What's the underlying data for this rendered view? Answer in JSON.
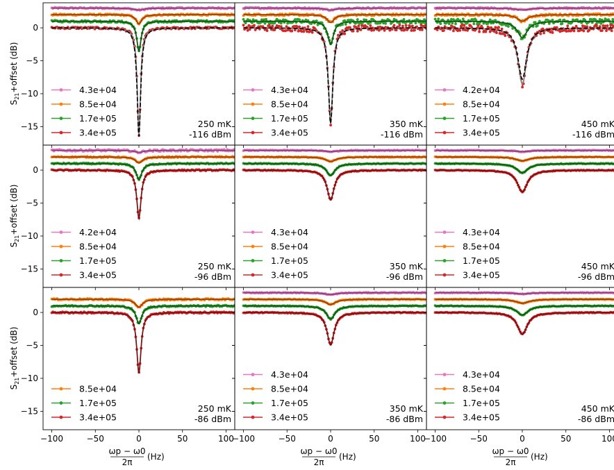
{
  "figure": {
    "ylabel_main": "S",
    "ylabel_sub": "21",
    "ylabel_rest": "+offset (dB)",
    "xlabel_num": "ωp − ω0",
    "xlabel_den": "2π",
    "xlabel_unit": "(Hz)"
  },
  "colors": {
    "pink": "#e377c2",
    "orange": "#ff7f0e",
    "green": "#2ca02c",
    "red": "#d62728",
    "fit": "#7f7f7f",
    "model": "#000000"
  },
  "chart_data": [
    {
      "type": "line",
      "row": 0,
      "col": 0,
      "temp_label": "250 mK",
      "power_label": "-116 dBm",
      "legend": [
        "4.3e+04",
        "8.5e+04",
        "1.7e+05",
        "3.4e+05"
      ],
      "series": [
        {
          "name": "4.3e+04",
          "color": "pink",
          "offset": 3,
          "depth": 0.3,
          "width": 8,
          "noise": 0.12
        },
        {
          "name": "8.5e+04",
          "color": "orange",
          "offset": 2,
          "depth": 1.4,
          "width": 4,
          "noise": 0.12
        },
        {
          "name": "1.7e+05",
          "color": "green",
          "offset": 1,
          "depth": 4.5,
          "width": 3,
          "noise": 0.15
        },
        {
          "name": "3.4e+05",
          "color": "red",
          "offset": 0,
          "depth": 16.5,
          "width": 2.2,
          "noise": 0.15
        }
      ],
      "dashed": {
        "depth": 16.5,
        "width": 2.5
      },
      "xlim": [
        -110,
        110
      ],
      "ylim": [
        -17.8,
        3.8
      ],
      "xticks": [
        -100,
        -50,
        0,
        50,
        100
      ],
      "yticks": [
        0,
        -5,
        -10,
        -15
      ]
    },
    {
      "type": "line",
      "row": 0,
      "col": 1,
      "temp_label": "350 mK",
      "power_label": "-116 dBm",
      "legend": [
        "4.3e+04",
        "8.5e+04",
        "1.7e+05",
        "3.4e+05"
      ],
      "series": [
        {
          "name": "4.3e+04",
          "color": "pink",
          "offset": 3,
          "depth": 0.3,
          "width": 8,
          "noise": 0.12
        },
        {
          "name": "8.5e+04",
          "color": "orange",
          "offset": 2,
          "depth": 1.2,
          "width": 5,
          "noise": 0.15
        },
        {
          "name": "1.7e+05",
          "color": "green",
          "offset": 1,
          "depth": 3.5,
          "width": 4,
          "noise": 0.35
        },
        {
          "name": "3.4e+05",
          "color": "red",
          "offset": 0,
          "depth": 14.5,
          "width": 3,
          "noise": 0.45
        }
      ],
      "dashed": {
        "depth": 14.5,
        "width": 3.2
      },
      "xlim": [
        -110,
        110
      ],
      "ylim": [
        -17.8,
        3.8
      ],
      "xticks": [
        -100,
        -50,
        0,
        50,
        100
      ],
      "yticks": [
        0,
        -5,
        -10,
        -15
      ]
    },
    {
      "type": "line",
      "row": 0,
      "col": 2,
      "temp_label": "450 mK",
      "power_label": "-116 dBm",
      "legend": [
        "4.2e+04",
        "8.5e+04",
        "1.7e+05",
        "3.4e+05"
      ],
      "series": [
        {
          "name": "4.2e+04",
          "color": "pink",
          "offset": 3,
          "depth": 0.3,
          "width": 10,
          "noise": 0.12
        },
        {
          "name": "8.5e+04",
          "color": "orange",
          "offset": 2,
          "depth": 1.0,
          "width": 7,
          "noise": 0.15
        },
        {
          "name": "1.7e+05",
          "color": "green",
          "offset": 1,
          "depth": 2.5,
          "width": 7,
          "noise": 0.4
        },
        {
          "name": "3.4e+05",
          "color": "red",
          "offset": 0,
          "depth": 8.5,
          "width": 6,
          "noise": 0.5
        }
      ],
      "dashed": {
        "depth": 7.8,
        "width": 6
      },
      "xlim": [
        -110,
        110
      ],
      "ylim": [
        -17.8,
        3.8
      ],
      "xticks": [
        -100,
        -50,
        0,
        50,
        100
      ],
      "yticks": [
        0,
        -5,
        -10,
        -15
      ]
    },
    {
      "type": "line",
      "row": 1,
      "col": 0,
      "temp_label": "250 mK",
      "power_label": "-96 dBm",
      "legend": [
        "4.2e+04",
        "8.5e+04",
        "1.7e+05",
        "3.4e+05"
      ],
      "series": [
        {
          "name": "4.2e+04",
          "color": "pink",
          "offset": 3,
          "depth": 0.3,
          "width": 6,
          "noise": 0.15
        },
        {
          "name": "8.5e+04",
          "color": "orange",
          "offset": 2,
          "depth": 0.9,
          "width": 5,
          "noise": 0.1
        },
        {
          "name": "1.7e+05",
          "color": "green",
          "offset": 1,
          "depth": 2.4,
          "width": 4,
          "noise": 0.1
        },
        {
          "name": "3.4e+05",
          "color": "red",
          "offset": 0,
          "depth": 7.3,
          "width": 3,
          "noise": 0.1
        }
      ],
      "dashed": null,
      "xlim": [
        -110,
        110
      ],
      "ylim": [
        -17.8,
        3.8
      ],
      "xticks": [
        -100,
        -50,
        0,
        50,
        100
      ],
      "yticks": [
        0,
        -5,
        -10,
        -15
      ]
    },
    {
      "type": "line",
      "row": 1,
      "col": 1,
      "temp_label": "350 mK",
      "power_label": "-96 dBm",
      "legend": [
        "4.3e+04",
        "8.5e+04",
        "1.7e+05",
        "3.4e+05"
      ],
      "series": [
        {
          "name": "4.3e+04",
          "color": "pink",
          "offset": 3,
          "depth": 0.2,
          "width": 8,
          "noise": 0.07
        },
        {
          "name": "8.5e+04",
          "color": "orange",
          "offset": 2,
          "depth": 0.7,
          "width": 7,
          "noise": 0.07
        },
        {
          "name": "1.7e+05",
          "color": "green",
          "offset": 1,
          "depth": 1.8,
          "width": 6,
          "noise": 0.07
        },
        {
          "name": "3.4e+05",
          "color": "red",
          "offset": 0,
          "depth": 4.5,
          "width": 5,
          "noise": 0.07
        }
      ],
      "dashed": null,
      "xlim": [
        -110,
        110
      ],
      "ylim": [
        -17.8,
        3.8
      ],
      "xticks": [
        -100,
        -50,
        0,
        50,
        100
      ],
      "yticks": [
        0,
        -5,
        -10,
        -15
      ]
    },
    {
      "type": "line",
      "row": 1,
      "col": 2,
      "temp_label": "450 mK",
      "power_label": "-96 dBm",
      "legend": [
        "4.3e+04",
        "8.5e+04",
        "1.7e+05",
        "3.4e+05"
      ],
      "series": [
        {
          "name": "4.3e+04",
          "color": "pink",
          "offset": 3,
          "depth": 0.2,
          "width": 10,
          "noise": 0.06
        },
        {
          "name": "8.5e+04",
          "color": "orange",
          "offset": 2,
          "depth": 0.6,
          "width": 9,
          "noise": 0.06
        },
        {
          "name": "1.7e+05",
          "color": "green",
          "offset": 1,
          "depth": 1.4,
          "width": 8,
          "noise": 0.06
        },
        {
          "name": "3.4e+05",
          "color": "red",
          "offset": 0,
          "depth": 3.3,
          "width": 7,
          "noise": 0.06
        }
      ],
      "dashed": null,
      "xlim": [
        -110,
        110
      ],
      "ylim": [
        -17.8,
        3.8
      ],
      "xticks": [
        -100,
        -50,
        0,
        50,
        100
      ],
      "yticks": [
        0,
        -5,
        -10,
        -15
      ]
    },
    {
      "type": "line",
      "row": 2,
      "col": 0,
      "temp_label": "250 mK",
      "power_label": "-86 dBm",
      "legend": [
        "8.5e+04",
        "1.7e+05",
        "3.4e+05"
      ],
      "series": [
        {
          "name": "8.5e+04",
          "color": "orange",
          "offset": 2,
          "depth": 1.2,
          "width": 5,
          "noise": 0.12
        },
        {
          "name": "1.7e+05",
          "color": "green",
          "offset": 1,
          "depth": 2.7,
          "width": 4,
          "noise": 0.12
        },
        {
          "name": "3.4e+05",
          "color": "red",
          "offset": 0,
          "depth": 9.2,
          "width": 3,
          "noise": 0.12
        }
      ],
      "dashed": null,
      "xlim": [
        -110,
        110
      ],
      "ylim": [
        -17.8,
        3.8
      ],
      "xticks": [
        -100,
        -50,
        0,
        50,
        100
      ],
      "yticks": [
        0,
        -5,
        -10,
        -15
      ]
    },
    {
      "type": "line",
      "row": 2,
      "col": 1,
      "temp_label": "350 mK",
      "power_label": "-86 dBm",
      "legend": [
        "4.3e+04",
        "8.5e+04",
        "1.7e+05",
        "3.4e+05"
      ],
      "series": [
        {
          "name": "4.3e+04",
          "color": "pink",
          "offset": 3,
          "depth": 0.3,
          "width": 8,
          "noise": 0.07
        },
        {
          "name": "8.5e+04",
          "color": "orange",
          "offset": 2,
          "depth": 0.8,
          "width": 7,
          "noise": 0.07
        },
        {
          "name": "1.7e+05",
          "color": "green",
          "offset": 1,
          "depth": 2.0,
          "width": 6,
          "noise": 0.07
        },
        {
          "name": "3.4e+05",
          "color": "red",
          "offset": 0,
          "depth": 4.9,
          "width": 5,
          "noise": 0.07
        }
      ],
      "dashed": null,
      "xlim": [
        -110,
        110
      ],
      "ylim": [
        -17.8,
        3.8
      ],
      "xticks": [
        -100,
        -50,
        0,
        50,
        100
      ],
      "yticks": [
        0,
        -5,
        -10,
        -15
      ]
    },
    {
      "type": "line",
      "row": 2,
      "col": 2,
      "temp_label": "450 mK",
      "power_label": "-86 dBm",
      "legend": [
        "4.3e+04",
        "8.5e+04",
        "1.7e+05",
        "3.4e+05"
      ],
      "series": [
        {
          "name": "4.3e+04",
          "color": "pink",
          "offset": 3,
          "depth": 0.2,
          "width": 10,
          "noise": 0.06
        },
        {
          "name": "8.5e+04",
          "color": "orange",
          "offset": 2,
          "depth": 0.6,
          "width": 9,
          "noise": 0.06
        },
        {
          "name": "1.7e+05",
          "color": "green",
          "offset": 1,
          "depth": 1.4,
          "width": 8,
          "noise": 0.06
        },
        {
          "name": "3.4e+05",
          "color": "red",
          "offset": 0,
          "depth": 3.3,
          "width": 7,
          "noise": 0.06
        }
      ],
      "dashed": null,
      "xlim": [
        -110,
        110
      ],
      "ylim": [
        -17.8,
        3.8
      ],
      "xticks": [
        -100,
        -50,
        0,
        50,
        100
      ],
      "yticks": [
        0,
        -5,
        -10,
        -15
      ]
    }
  ]
}
